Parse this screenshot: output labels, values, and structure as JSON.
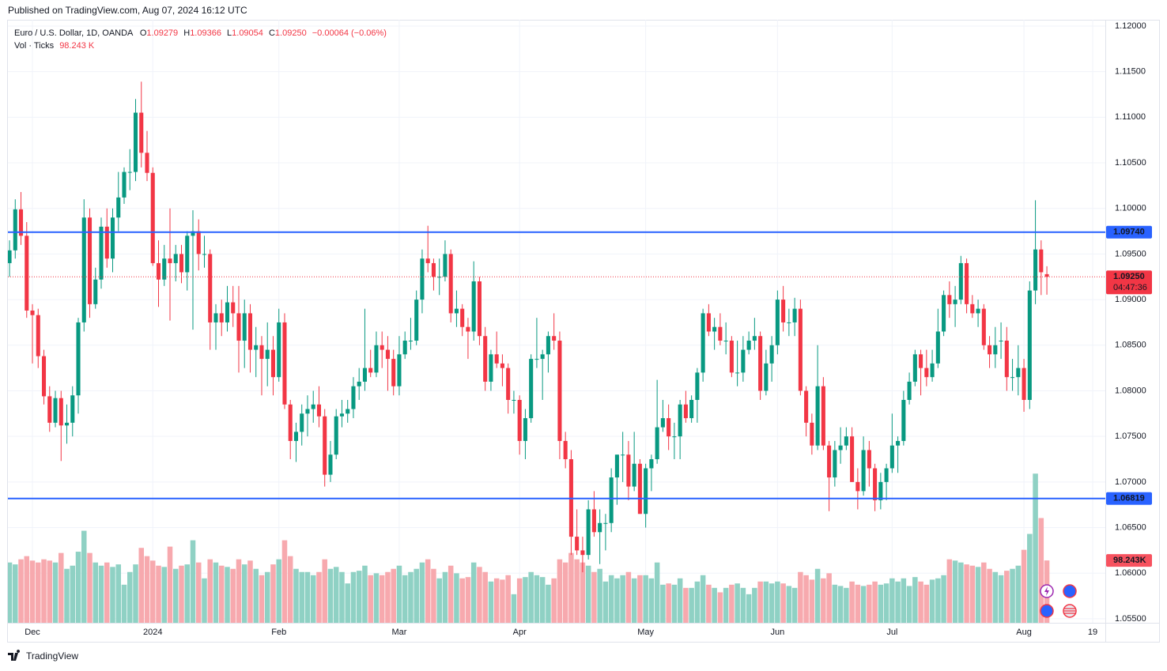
{
  "header": {
    "published": "Published on TradingView.com, Aug 07, 2024 16:12 UTC",
    "footer": "TradingView"
  },
  "chart_data": {
    "type": "candlestick",
    "symbol": "Euro / U.S. Dollar, 1D, OANDA",
    "legend": {
      "o_label": "O",
      "open": "1.09279",
      "h_label": "H",
      "high": "1.09366",
      "l_label": "L",
      "low": "1.09054",
      "c_label": "C",
      "close": "1.09250",
      "change": "−0.00064 (−0.06%)",
      "volume_title": "Vol · Ticks",
      "volume": "98.243 K"
    },
    "up_color": "#089981",
    "down_color": "#f23645",
    "volume_up_color": "#8fd1c4",
    "volume_down_color": "#f7a9ae",
    "grid": true,
    "xlim": [
      -0.28,
      191.2
    ],
    "xticks": [
      {
        "value": 4,
        "label": "Dec"
      },
      {
        "value": 25,
        "label": "2024"
      },
      {
        "value": 47,
        "label": "Feb"
      },
      {
        "value": 68,
        "label": "Mar"
      },
      {
        "value": 89,
        "label": "Apr"
      },
      {
        "value": 111,
        "label": "May"
      },
      {
        "value": 134,
        "label": "Jun"
      },
      {
        "value": 154,
        "label": "Jul"
      },
      {
        "value": 177,
        "label": "Aug"
      },
      {
        "value": 189,
        "label": "19"
      }
    ],
    "ylim": [
      1.05456,
      1.12069
    ],
    "yticks": [
      {
        "value": 1.055,
        "label": "1.05500"
      },
      {
        "value": 1.06,
        "label": "1.06000"
      },
      {
        "value": 1.065,
        "label": "1.06500"
      },
      {
        "value": 1.07,
        "label": "1.07000"
      },
      {
        "value": 1.075,
        "label": "1.07500"
      },
      {
        "value": 1.08,
        "label": "1.08000"
      },
      {
        "value": 1.085,
        "label": "1.08500"
      },
      {
        "value": 1.09,
        "label": "1.09000"
      },
      {
        "value": 1.095,
        "label": "1.09500"
      },
      {
        "value": 1.1,
        "label": "1.10000"
      },
      {
        "value": 1.105,
        "label": "1.10500"
      },
      {
        "value": 1.11,
        "label": "1.11000"
      },
      {
        "value": 1.115,
        "label": "1.11500"
      },
      {
        "value": 1.12,
        "label": "1.12000"
      }
    ],
    "hlines": [
      {
        "value": 1.0974,
        "label": "1.09740",
        "color": "#2962ff"
      },
      {
        "value": 1.06819,
        "label": "1.06819",
        "color": "#2962ff"
      }
    ],
    "last_price": {
      "value": 1.0925,
      "label": "1.09250",
      "countdown": "04:47:36"
    },
    "volume_ylim": [
      0,
      950000
    ],
    "volume_label": "98.243K",
    "ohlc": [
      [
        1.094,
        1.0965,
        1.0925,
        1.0954
      ],
      [
        1.0954,
        1.101,
        1.0945,
        1.0999
      ],
      [
        1.0999,
        1.1018,
        1.096,
        1.097
      ],
      [
        1.097,
        1.0985,
        1.088,
        1.0888
      ],
      [
        1.0888,
        1.0895,
        1.083,
        1.0883
      ],
      [
        1.0883,
        1.089,
        1.0825,
        1.0838
      ],
      [
        1.0838,
        1.0845,
        1.0785,
        1.0794
      ],
      [
        1.0794,
        1.0805,
        1.0755,
        1.0765
      ],
      [
        1.0765,
        1.08,
        1.076,
        1.0792
      ],
      [
        1.0792,
        1.08,
        1.0723,
        1.0762
      ],
      [
        1.0762,
        1.0785,
        1.0742,
        1.0765
      ],
      [
        1.0765,
        1.0805,
        1.075,
        1.0795
      ],
      [
        1.0795,
        1.088,
        1.0775,
        1.0875
      ],
      [
        1.0875,
        1.101,
        1.0865,
        1.099
      ],
      [
        1.099,
        1.1,
        1.088,
        1.0895
      ],
      [
        1.0895,
        1.0935,
        1.089,
        1.0922
      ],
      [
        1.0922,
        1.099,
        1.0912,
        1.098
      ],
      [
        1.098,
        1.1,
        1.0935,
        1.0945
      ],
      [
        1.0945,
        1.1,
        1.093,
        1.099
      ],
      [
        1.099,
        1.104,
        1.0975,
        1.1012
      ],
      [
        1.1012,
        1.1045,
        1.1005,
        1.104
      ],
      [
        1.104,
        1.1065,
        1.102,
        1.104
      ],
      [
        1.104,
        1.112,
        1.103,
        1.1105
      ],
      [
        1.1105,
        1.1139,
        1.1045,
        1.1061
      ],
      [
        1.1061,
        1.1085,
        1.103,
        1.1039
      ],
      [
        1.1039,
        1.1045,
        1.0937,
        1.094
      ],
      [
        1.094,
        1.0965,
        1.0892,
        1.0922
      ],
      [
        1.0922,
        1.096,
        1.0915,
        1.0945
      ],
      [
        1.0945,
        1.1,
        1.0877,
        1.094
      ],
      [
        1.094,
        1.096,
        1.092,
        1.095
      ],
      [
        1.095,
        1.096,
        1.0918,
        1.093
      ],
      [
        1.093,
        1.0975,
        1.091,
        1.097
      ],
      [
        1.097,
        1.0998,
        1.0867,
        1.0975
      ],
      [
        1.0975,
        1.0988,
        1.0932,
        1.095
      ],
      [
        1.095,
        1.097,
        1.0935,
        1.095
      ],
      [
        1.095,
        1.0955,
        1.0845,
        1.0875
      ],
      [
        1.0875,
        1.0895,
        1.0845,
        1.0885
      ],
      [
        1.0885,
        1.09,
        1.086,
        1.0875
      ],
      [
        1.0875,
        1.0915,
        1.0865,
        1.0897
      ],
      [
        1.0897,
        1.0915,
        1.087,
        1.0885
      ],
      [
        1.0885,
        1.0915,
        1.082,
        1.0855
      ],
      [
        1.0855,
        1.09,
        1.0825,
        1.0885
      ],
      [
        1.0885,
        1.0895,
        1.082,
        1.0845
      ],
      [
        1.0845,
        1.087,
        1.0815,
        1.085
      ],
      [
        1.085,
        1.086,
        1.0795,
        1.0835
      ],
      [
        1.0835,
        1.0875,
        1.0805,
        1.0845
      ],
      [
        1.0845,
        1.086,
        1.0795,
        1.0815
      ],
      [
        1.0815,
        1.089,
        1.081,
        1.0875
      ],
      [
        1.0875,
        1.0885,
        1.078,
        1.0785
      ],
      [
        1.0785,
        1.079,
        1.0725,
        1.0745
      ],
      [
        1.0745,
        1.0765,
        1.0722,
        1.0755
      ],
      [
        1.0755,
        1.0785,
        1.074,
        1.0775
      ],
      [
        1.0775,
        1.0795,
        1.075,
        1.078
      ],
      [
        1.078,
        1.08,
        1.0765,
        1.0785
      ],
      [
        1.0785,
        1.0805,
        1.076,
        1.0772
      ],
      [
        1.0772,
        1.078,
        1.0695,
        1.0708
      ],
      [
        1.0708,
        1.0745,
        1.07,
        1.073
      ],
      [
        1.073,
        1.078,
        1.0725,
        1.0772
      ],
      [
        1.0772,
        1.079,
        1.076,
        1.0775
      ],
      [
        1.0775,
        1.079,
        1.0765,
        1.078
      ],
      [
        1.078,
        1.0815,
        1.077,
        1.0805
      ],
      [
        1.0805,
        1.0825,
        1.079,
        1.081
      ],
      [
        1.081,
        1.089,
        1.08,
        1.0825
      ],
      [
        1.0825,
        1.0845,
        1.0815,
        1.082
      ],
      [
        1.082,
        1.0865,
        1.0815,
        1.085
      ],
      [
        1.085,
        1.0865,
        1.0825,
        1.0845
      ],
      [
        1.0845,
        1.086,
        1.08,
        1.0835
      ],
      [
        1.0835,
        1.0845,
        1.0795,
        1.0805
      ],
      [
        1.0805,
        1.086,
        1.0795,
        1.084
      ],
      [
        1.084,
        1.0865,
        1.0835,
        1.0855
      ],
      [
        1.0855,
        1.088,
        1.0845,
        1.0855
      ],
      [
        1.0855,
        1.091,
        1.085,
        1.09
      ],
      [
        1.09,
        1.0955,
        1.0885,
        1.0945
      ],
      [
        1.0945,
        1.0981,
        1.093,
        1.094
      ],
      [
        1.094,
        1.0945,
        1.091,
        1.0925
      ],
      [
        1.0925,
        1.0945,
        1.0905,
        1.0925
      ],
      [
        1.0925,
        1.0965,
        1.092,
        1.095
      ],
      [
        1.095,
        1.0955,
        1.0875,
        1.0885
      ],
      [
        1.0885,
        1.091,
        1.087,
        1.089
      ],
      [
        1.089,
        1.0895,
        1.086,
        1.087
      ],
      [
        1.087,
        1.088,
        1.0835,
        1.0865
      ],
      [
        1.0865,
        1.0942,
        1.0855,
        1.092
      ],
      [
        1.092,
        1.0925,
        1.085,
        1.086
      ],
      [
        1.086,
        1.087,
        1.08,
        1.081
      ],
      [
        1.081,
        1.0845,
        1.08,
        1.084
      ],
      [
        1.084,
        1.0865,
        1.0825,
        1.083
      ],
      [
        1.083,
        1.084,
        1.0805,
        1.0825
      ],
      [
        1.0825,
        1.083,
        1.0775,
        1.079
      ],
      [
        1.079,
        1.08,
        1.0775,
        1.079
      ],
      [
        1.079,
        1.0795,
        1.073,
        1.0745
      ],
      [
        1.0745,
        1.078,
        1.0725,
        1.077
      ],
      [
        1.077,
        1.084,
        1.0765,
        1.0835
      ],
      [
        1.0835,
        1.088,
        1.0825,
        1.0835
      ],
      [
        1.0835,
        1.0845,
        1.079,
        1.084
      ],
      [
        1.084,
        1.0865,
        1.082,
        1.086
      ],
      [
        1.086,
        1.0885,
        1.0845,
        1.0855
      ],
      [
        1.0855,
        1.0865,
        1.0725,
        1.0745
      ],
      [
        1.0745,
        1.0755,
        1.0715,
        1.0725
      ],
      [
        1.0725,
        1.0735,
        1.062,
        1.064
      ],
      [
        1.064,
        1.067,
        1.062,
        1.0625
      ],
      [
        1.0625,
        1.064,
        1.0601,
        1.062
      ],
      [
        1.062,
        1.068,
        1.0615,
        1.067
      ],
      [
        1.067,
        1.069,
        1.064,
        1.0645
      ],
      [
        1.0645,
        1.067,
        1.061,
        1.0655
      ],
      [
        1.0655,
        1.0665,
        1.0625,
        1.0655
      ],
      [
        1.0655,
        1.0715,
        1.0645,
        1.0705
      ],
      [
        1.0705,
        1.073,
        1.0675,
        1.073
      ],
      [
        1.073,
        1.0755,
        1.07,
        1.073
      ],
      [
        1.073,
        1.0745,
        1.068,
        1.0695
      ],
      [
        1.0695,
        1.0755,
        1.069,
        1.072
      ],
      [
        1.072,
        1.0725,
        1.0665,
        1.0665
      ],
      [
        1.0665,
        1.072,
        1.065,
        1.0715
      ],
      [
        1.0715,
        1.073,
        1.069,
        1.0725
      ],
      [
        1.0725,
        1.0812,
        1.072,
        1.076
      ],
      [
        1.076,
        1.079,
        1.0755,
        1.077
      ],
      [
        1.077,
        1.0785,
        1.0735,
        1.075
      ],
      [
        1.075,
        1.0765,
        1.0725,
        1.075
      ],
      [
        1.075,
        1.079,
        1.0725,
        1.0785
      ],
      [
        1.0785,
        1.08,
        1.0765,
        1.077
      ],
      [
        1.077,
        1.0795,
        1.0765,
        1.079
      ],
      [
        1.079,
        1.0825,
        1.0765,
        1.082
      ],
      [
        1.082,
        1.089,
        1.081,
        1.0885
      ],
      [
        1.0885,
        1.0895,
        1.086,
        1.0865
      ],
      [
        1.0865,
        1.088,
        1.0845,
        1.087
      ],
      [
        1.087,
        1.0885,
        1.085,
        1.0855
      ],
      [
        1.0855,
        1.0875,
        1.084,
        1.0855
      ],
      [
        1.0855,
        1.086,
        1.0815,
        1.082
      ],
      [
        1.082,
        1.0855,
        1.0805,
        1.082
      ],
      [
        1.082,
        1.086,
        1.081,
        1.0845
      ],
      [
        1.0845,
        1.0865,
        1.084,
        1.0855
      ],
      [
        1.0855,
        1.088,
        1.0845,
        1.086
      ],
      [
        1.086,
        1.0865,
        1.079,
        1.08
      ],
      [
        1.08,
        1.0845,
        1.0795,
        1.083
      ],
      [
        1.083,
        1.086,
        1.081,
        1.085
      ],
      [
        1.085,
        1.091,
        1.084,
        1.09
      ],
      [
        1.09,
        1.0915,
        1.0865,
        1.0875
      ],
      [
        1.0875,
        1.089,
        1.086,
        1.0875
      ],
      [
        1.0875,
        1.0902,
        1.086,
        1.089
      ],
      [
        1.089,
        1.09,
        1.0795,
        1.08
      ],
      [
        1.08,
        1.0805,
        1.075,
        1.0765
      ],
      [
        1.0765,
        1.0775,
        1.073,
        1.074
      ],
      [
        1.074,
        1.085,
        1.0735,
        1.0805
      ],
      [
        1.0805,
        1.0815,
        1.0735,
        1.074
      ],
      [
        1.074,
        1.0745,
        1.0668,
        1.0705
      ],
      [
        1.0705,
        1.0745,
        1.0695,
        1.0735
      ],
      [
        1.0735,
        1.076,
        1.072,
        1.074
      ],
      [
        1.074,
        1.076,
        1.0735,
        1.075
      ],
      [
        1.075,
        1.076,
        1.07,
        1.07
      ],
      [
        1.07,
        1.0715,
        1.067,
        1.069
      ],
      [
        1.069,
        1.075,
        1.0685,
        1.0735
      ],
      [
        1.0735,
        1.0745,
        1.0695,
        1.0715
      ],
      [
        1.0715,
        1.072,
        1.0668,
        1.068
      ],
      [
        1.068,
        1.071,
        1.067,
        1.07
      ],
      [
        1.07,
        1.072,
        1.068,
        1.0715
      ],
      [
        1.0715,
        1.0775,
        1.071,
        1.074
      ],
      [
        1.074,
        1.075,
        1.071,
        1.0745
      ],
      [
        1.0745,
        1.08,
        1.074,
        1.079
      ],
      [
        1.079,
        1.082,
        1.0785,
        1.081
      ],
      [
        1.081,
        1.0845,
        1.0805,
        1.084
      ],
      [
        1.084,
        1.0845,
        1.0795,
        1.0825
      ],
      [
        1.0825,
        1.0845,
        1.0805,
        1.0815
      ],
      [
        1.0815,
        1.0845,
        1.081,
        1.083
      ],
      [
        1.083,
        1.089,
        1.0825,
        1.0865
      ],
      [
        1.0865,
        1.091,
        1.086,
        1.0905
      ],
      [
        1.0905,
        1.092,
        1.088,
        1.0895
      ],
      [
        1.0895,
        1.0915,
        1.087,
        1.09
      ],
      [
        1.09,
        1.0948,
        1.0895,
        1.094
      ],
      [
        1.094,
        1.0945,
        1.0885,
        1.0895
      ],
      [
        1.0895,
        1.0905,
        1.088,
        1.0885
      ],
      [
        1.0885,
        1.09,
        1.087,
        1.089
      ],
      [
        1.089,
        1.0895,
        1.0845,
        1.085
      ],
      [
        1.085,
        1.086,
        1.0825,
        1.084
      ],
      [
        1.084,
        1.087,
        1.0825,
        1.085
      ],
      [
        1.0855,
        1.0875,
        1.0835,
        1.0855
      ],
      [
        1.0855,
        1.087,
        1.08,
        1.0815
      ],
      [
        1.0815,
        1.0835,
        1.08,
        1.0815
      ],
      [
        1.0815,
        1.085,
        1.0795,
        1.0825
      ],
      [
        1.0825,
        1.0835,
        1.0777,
        1.079
      ],
      [
        1.079,
        1.092,
        1.078,
        1.091
      ],
      [
        1.091,
        1.1009,
        1.0895,
        1.0955
      ],
      [
        1.0955,
        1.0965,
        1.0905,
        1.093
      ],
      [
        1.09279,
        1.09366,
        1.09054,
        1.0925
      ]
    ],
    "volume": [
      95000,
      92000,
      100000,
      105000,
      98000,
      95000,
      100000,
      98000,
      95000,
      110000,
      85000,
      90000,
      112000,
      145000,
      110000,
      95000,
      90000,
      95000,
      88000,
      92000,
      60000,
      80000,
      92000,
      118000,
      105000,
      98000,
      90000,
      88000,
      120000,
      85000,
      90000,
      92000,
      130000,
      95000,
      70000,
      100000,
      95000,
      90000,
      88000,
      85000,
      100000,
      92000,
      98000,
      85000,
      75000,
      80000,
      92000,
      100000,
      130000,
      105000,
      85000,
      80000,
      80000,
      75000,
      80000,
      100000,
      85000,
      88000,
      80000,
      62000,
      80000,
      82000,
      90000,
      75000,
      78000,
      75000,
      80000,
      85000,
      90000,
      75000,
      80000,
      85000,
      95000,
      100000,
      85000,
      70000,
      80000,
      90000,
      78000,
      70000,
      72000,
      95000,
      88000,
      80000,
      65000,
      70000,
      68000,
      75000,
      45000,
      70000,
      72000,
      80000,
      75000,
      72000,
      60000,
      70000,
      100000,
      95000,
      110000,
      100000,
      95000,
      90000,
      80000,
      85000,
      65000,
      75000,
      70000,
      75000,
      80000,
      70000,
      75000,
      75000,
      70000,
      95000,
      60000,
      62000,
      60000,
      70000,
      55000,
      55000,
      65000,
      75000,
      60000,
      55000,
      48000,
      55000,
      60000,
      62000,
      55000,
      45000,
      55000,
      65000,
      65000,
      62000,
      65000,
      62000,
      58000,
      55000,
      80000,
      75000,
      68000,
      85000,
      70000,
      78000,
      60000,
      58000,
      55000,
      65000,
      60000,
      58000,
      60000,
      65000,
      60000,
      62000,
      70000,
      65000,
      70000,
      58000,
      72000,
      65000,
      60000,
      68000,
      70000,
      75000,
      100000,
      98000,
      95000,
      92000,
      90000,
      88000,
      95000,
      85000,
      80000,
      75000,
      82000,
      85000,
      90000,
      115000,
      140000,
      235000,
      165000,
      98243
    ]
  }
}
